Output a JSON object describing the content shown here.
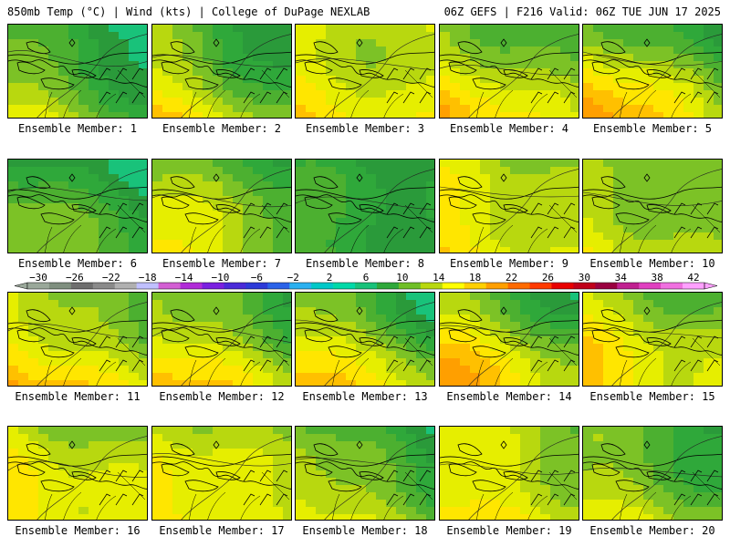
{
  "header": {
    "left": "850mb Temp (°C) | Wind (kts) | College of DuPage NEXLAB",
    "right": "06Z GEFS | F216 Valid: 06Z TUE JUN 17 2025"
  },
  "panels": [
    {
      "label": "Ensemble Member: 1",
      "base": 8,
      "bias_sw": 6,
      "bias_ne": -4
    },
    {
      "label": "Ensemble Member: 2",
      "base": 11,
      "bias_sw": 5,
      "bias_ne": -6
    },
    {
      "label": "Ensemble Member: 3",
      "base": 14,
      "bias_sw": 2,
      "bias_ne": -1
    },
    {
      "label": "Ensemble Member: 4",
      "base": 12,
      "bias_sw": 6,
      "bias_ne": -3
    },
    {
      "label": "Ensemble Member: 5",
      "base": 12,
      "bias_sw": 8,
      "bias_ne": -5
    },
    {
      "label": "Ensemble Member: 6",
      "base": 8,
      "bias_sw": 4,
      "bias_ne": -4
    },
    {
      "label": "Ensemble Member: 7",
      "base": 11,
      "bias_sw": 5,
      "bias_ne": -3
    },
    {
      "label": "Ensemble Member: 8",
      "base": 7,
      "bias_sw": 1,
      "bias_ne": -2
    },
    {
      "label": "Ensemble Member: 9",
      "base": 14,
      "bias_sw": 3,
      "bias_ne": -3
    },
    {
      "label": "Ensemble Member: 10",
      "base": 12,
      "bias_sw": 3,
      "bias_ne": -3
    },
    {
      "label": "Ensemble Member: 11",
      "base": 14,
      "bias_sw": 5,
      "bias_ne": -5
    },
    {
      "label": "Ensemble Member: 12",
      "base": 13,
      "bias_sw": 5,
      "bias_ne": -5
    },
    {
      "label": "Ensemble Member: 13",
      "base": 13,
      "bias_sw": 4,
      "bias_ne": -7
    },
    {
      "label": "Ensemble Member: 14",
      "base": 13,
      "bias_sw": 6,
      "bias_ne": -6
    },
    {
      "label": "Ensemble Member: 15",
      "base": 14,
      "bias_sw": 3,
      "bias_ne": -4
    },
    {
      "label": "Ensemble Member: 16",
      "base": 14,
      "bias_sw": 3,
      "bias_ne": -3
    },
    {
      "label": "Ensemble Member: 17",
      "base": 14,
      "bias_sw": 4,
      "bias_ne": -3
    },
    {
      "label": "Ensemble Member: 18",
      "base": 11,
      "bias_sw": 5,
      "bias_ne": -6
    },
    {
      "label": "Ensemble Member: 19",
      "base": 14,
      "bias_sw": 3,
      "bias_ne": -3
    },
    {
      "label": "Ensemble Member: 20",
      "base": 11,
      "bias_sw": 3,
      "bias_ne": -4
    }
  ],
  "colorbar": {
    "ticks": [
      "−30",
      "−26",
      "−22",
      "−18",
      "−14",
      "−10",
      "−6",
      "−2",
      "2",
      "6",
      "10",
      "14",
      "18",
      "22",
      "26",
      "30",
      "34",
      "38",
      "42"
    ],
    "colors": [
      "#9aa89a",
      "#7f8f7f",
      "#6e6e6e",
      "#8a8a8a",
      "#b0b0b0",
      "#c0c0ff",
      "#d35fd3",
      "#b02ad8",
      "#7a1fe0",
      "#4a2ad8",
      "#2d3ad8",
      "#2a62e8",
      "#2ab0f0",
      "#00c8c8",
      "#00d9a8",
      "#19c27a",
      "#2fa83a",
      "#6fbf26",
      "#b8d80f",
      "#ffff00",
      "#ffd000",
      "#ff9f00",
      "#ff6a00",
      "#ff3a00",
      "#e80000",
      "#c0001a",
      "#9a0040",
      "#c02090",
      "#e040c0",
      "#f070e0",
      "#ffa0ff"
    ]
  }
}
